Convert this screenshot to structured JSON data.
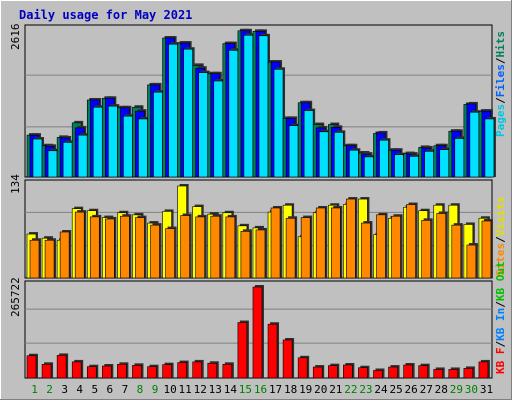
{
  "chart_data": [
    {
      "type": "bar",
      "title": "Daily usage for May 2021",
      "panel": "hits-files-pages",
      "ymax_label": "2616",
      "ylim": [
        0,
        2616
      ],
      "grid": true,
      "legend": "right",
      "legend_entries": [
        "Pages",
        "Files",
        "Hits"
      ],
      "colors": {
        "Hits": "#00805c",
        "Files": "#0000ff",
        "Pages": "#00e0ff"
      },
      "categories": [
        "1",
        "2",
        "3",
        "4",
        "5",
        "6",
        "7",
        "8",
        "9",
        "10",
        "11",
        "12",
        "13",
        "14",
        "15",
        "16",
        "17",
        "18",
        "19",
        "20",
        "21",
        "22",
        "23",
        "24",
        "25",
        "26",
        "27",
        "28",
        "29",
        "30",
        "31"
      ],
      "series": [
        {
          "name": "Hits",
          "values": [
            750,
            560,
            710,
            970,
            1380,
            1410,
            1240,
            1250,
            1650,
            2490,
            2400,
            2000,
            1850,
            2390,
            2620,
            2610,
            2060,
            1050,
            1330,
            940,
            940,
            560,
            430,
            780,
            480,
            420,
            530,
            560,
            820,
            1300,
            1180
          ]
        },
        {
          "name": "Files",
          "values": [
            750,
            550,
            700,
            880,
            1380,
            1410,
            1240,
            1180,
            1650,
            2490,
            2400,
            1950,
            1850,
            2390,
            2620,
            2610,
            2060,
            1050,
            1330,
            880,
            890,
            560,
            410,
            790,
            480,
            410,
            520,
            560,
            820,
            1310,
            1180
          ]
        },
        {
          "name": "Pages",
          "values": [
            680,
            470,
            620,
            750,
            1250,
            1270,
            1090,
            1040,
            1520,
            2380,
            2290,
            1870,
            1720,
            2270,
            2540,
            2530,
            1930,
            920,
            1190,
            810,
            800,
            480,
            360,
            660,
            400,
            370,
            460,
            490,
            690,
            1160,
            1040
          ]
        }
      ]
    },
    {
      "type": "bar",
      "panel": "visits-sites",
      "ymax_label": "134",
      "ylim": [
        0,
        134
      ],
      "grid": true,
      "legend": "right",
      "legend_entries": [
        "Sites",
        "Visits"
      ],
      "colors": {
        "Visits": "#ffff00",
        "Sites": "#ff8800"
      },
      "categories": [
        "1",
        "2",
        "3",
        "4",
        "5",
        "6",
        "7",
        "8",
        "9",
        "10",
        "11",
        "12",
        "13",
        "14",
        "15",
        "16",
        "17",
        "18",
        "19",
        "20",
        "21",
        "22",
        "23",
        "24",
        "25",
        "26",
        "27",
        "28",
        "29",
        "30",
        "31"
      ],
      "series": [
        {
          "name": "Visits",
          "values": [
            64,
            58,
            55,
            101,
            98,
            88,
            95,
            92,
            80,
            97,
            134,
            104,
            93,
            95,
            76,
            73,
            96,
            106,
            60,
            95,
            106,
            107,
            115,
            63,
            87,
            103,
            98,
            106,
            106,
            78,
            87
          ]
        },
        {
          "name": "Sites",
          "values": [
            55,
            55,
            67,
            96,
            89,
            86,
            90,
            88,
            77,
            72,
            91,
            89,
            90,
            89,
            68,
            70,
            102,
            87,
            88,
            102,
            102,
            115,
            80,
            92,
            90,
            107,
            84,
            94,
            77,
            48,
            83
          ]
        }
      ]
    },
    {
      "type": "bar",
      "panel": "kbytes",
      "ymax_label": "265722",
      "ylim": [
        0,
        265722
      ],
      "grid": true,
      "legend": "right",
      "legend_entries": [
        "KB F",
        "KB In",
        "KB Out"
      ],
      "colors": {
        "KB F": "#ff0000",
        "KB In": "#0080ff",
        "KB Out": "#00c000"
      },
      "categories": [
        "1",
        "2",
        "3",
        "4",
        "5",
        "6",
        "7",
        "8",
        "9",
        "10",
        "11",
        "12",
        "13",
        "14",
        "15",
        "16",
        "17",
        "18",
        "19",
        "20",
        "21",
        "22",
        "23",
        "24",
        "25",
        "26",
        "27",
        "28",
        "29",
        "30",
        "31"
      ],
      "series": [
        {
          "name": "KB F",
          "values": [
            65000,
            40000,
            66000,
            47000,
            33000,
            35000,
            40000,
            37000,
            33000,
            39000,
            45000,
            47000,
            43000,
            40000,
            162000,
            265722,
            157000,
            111000,
            59000,
            32000,
            36000,
            38000,
            30000,
            22000,
            32000,
            38000,
            36000,
            25000,
            25000,
            28000,
            47000
          ]
        }
      ]
    }
  ],
  "x_label_colors": {
    "weekday": "#008000",
    "weekend": "#000000"
  }
}
